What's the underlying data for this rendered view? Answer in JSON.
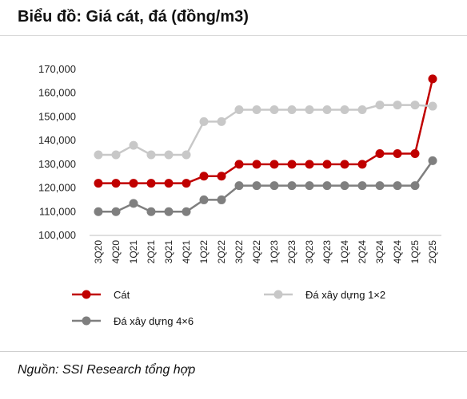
{
  "title": "Biểu đồ: Giá cát, đá (đồng/m3)",
  "source": "Nguồn: SSI Research tổng hợp",
  "chart_data": {
    "type": "line",
    "title": "Biểu đồ: Giá cát, đá (đồng/m3)",
    "xlabel": "",
    "ylabel": "",
    "ylim": [
      100000,
      170000
    ],
    "y_ticks": [
      100000,
      110000,
      120000,
      130000,
      140000,
      150000,
      160000,
      170000
    ],
    "y_tick_labels": [
      "100,000",
      "110,000",
      "120,000",
      "130,000",
      "140,000",
      "150,000",
      "160,000",
      "170,000"
    ],
    "grid": false,
    "legend_position": "bottom",
    "categories": [
      "3Q20",
      "4Q20",
      "1Q21",
      "2Q21",
      "3Q21",
      "4Q21",
      "1Q22",
      "2Q22",
      "3Q22",
      "4Q22",
      "1Q23",
      "2Q23",
      "3Q23",
      "4Q23",
      "1Q24",
      "2Q24",
      "3Q24",
      "4Q24",
      "1Q25",
      "2Q25"
    ],
    "series": [
      {
        "name": "Cát",
        "color": "#c00000",
        "values": [
          122000,
          122000,
          122000,
          122000,
          122000,
          122000,
          125000,
          125000,
          130000,
          130000,
          130000,
          130000,
          130000,
          130000,
          130000,
          130000,
          134500,
          134500,
          134500,
          166000
        ]
      },
      {
        "name": "Đá xây dựng 1×2",
        "color": "#c8c8c8",
        "values": [
          134000,
          134000,
          138000,
          134000,
          134000,
          134000,
          148000,
          148000,
          153000,
          153000,
          153000,
          153000,
          153000,
          153000,
          153000,
          153000,
          155000,
          155000,
          155000,
          154500
        ]
      },
      {
        "name": "Đá xây dựng 4×6",
        "color": "#7f7f7f",
        "values": [
          110000,
          110000,
          113500,
          110000,
          110000,
          110000,
          115000,
          115000,
          121000,
          121000,
          121000,
          121000,
          121000,
          121000,
          121000,
          121000,
          121000,
          121000,
          121000,
          131500
        ]
      }
    ]
  }
}
